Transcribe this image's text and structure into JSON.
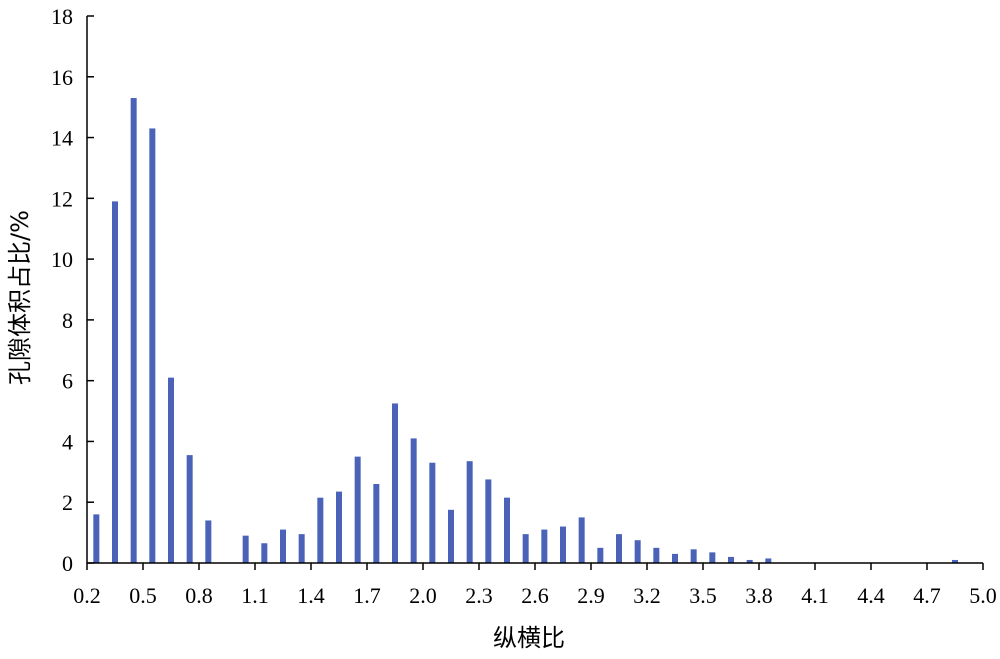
{
  "chart_data": {
    "type": "bar",
    "title": "",
    "xlabel": "纵横比",
    "ylabel": "孔隙体积占比/%",
    "ylim": [
      0,
      18
    ],
    "xlim": [
      0.2,
      5.0
    ],
    "grid": false,
    "yticks": [
      "0",
      "2",
      "4",
      "6",
      "8",
      "10",
      "12",
      "14",
      "16",
      "18"
    ],
    "xticks": [
      "0.2",
      "0.5",
      "0.8",
      "1.1",
      "1.4",
      "1.7",
      "2.0",
      "2.3",
      "2.6",
      "2.9",
      "3.2",
      "3.5",
      "3.8",
      "4.1",
      "4.4",
      "4.7",
      "5.0"
    ],
    "bar_color": "#4a63b8",
    "x": [
      0.25,
      0.35,
      0.45,
      0.55,
      0.65,
      0.75,
      0.85,
      1.05,
      1.15,
      1.25,
      1.35,
      1.45,
      1.55,
      1.65,
      1.75,
      1.85,
      1.95,
      2.05,
      2.15,
      2.25,
      2.35,
      2.45,
      2.55,
      2.65,
      2.75,
      2.85,
      2.95,
      3.05,
      3.15,
      3.25,
      3.35,
      3.45,
      3.55,
      3.65,
      3.75,
      3.85,
      4.85
    ],
    "values": [
      1.6,
      11.9,
      15.3,
      14.3,
      6.1,
      3.55,
      1.4,
      0.9,
      0.65,
      1.1,
      0.95,
      2.15,
      2.35,
      3.5,
      2.6,
      5.25,
      4.1,
      3.3,
      1.75,
      3.35,
      2.75,
      2.15,
      0.95,
      1.1,
      1.2,
      1.5,
      0.5,
      0.95,
      0.75,
      0.5,
      0.3,
      0.45,
      0.35,
      0.2,
      0.1,
      0.15,
      0.1
    ]
  }
}
